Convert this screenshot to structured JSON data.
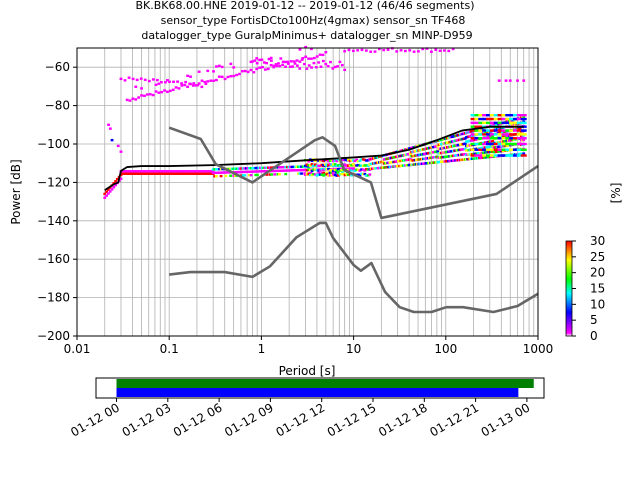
{
  "chart_data": [
    {
      "type": "ppsd",
      "title_lines": [
        "BK.BK68.00.HNE   2019-01-12 -- 2019-01-12  (46/46 segments)",
        "sensor_type FortisDCto100Hz(4gmax) sensor_sn TF468",
        "datalogger_type GuralpMinimus+ datalogger_sn MINP-D959"
      ],
      "xlabel": "Period [s]",
      "ylabel": "Power [dB]",
      "x_scale": "log",
      "xlim": [
        0.01,
        1000
      ],
      "ylim": [
        -200,
        -50
      ],
      "x_ticks": [
        0.01,
        0.1,
        1,
        10,
        100,
        1000
      ],
      "x_tick_labels": [
        "0.01",
        "0.1",
        "1",
        "10",
        "100",
        "1000"
      ],
      "y_ticks": [
        -200,
        -180,
        -160,
        -140,
        -120,
        -100,
        -80,
        -60
      ],
      "y_tick_labels": [
        "−200",
        "−180",
        "−160",
        "−140",
        "−120",
        "−100",
        "−80",
        "−60"
      ],
      "grid": true,
      "colorbar": {
        "label": "[%]",
        "range": [
          0,
          30
        ],
        "ticks": [
          0,
          5,
          10,
          15,
          20,
          25,
          30
        ],
        "tick_labels": [
          "0",
          "5",
          "10",
          "15",
          "20",
          "25",
          "30"
        ],
        "colormap": [
          "#ffffff",
          "#ff00ff",
          "#0000ff",
          "#00ffff",
          "#00ff00",
          "#ffff00",
          "#ff0000"
        ]
      },
      "series": [
        {
          "role": "mean",
          "color": "#000000",
          "x": [
            0.02,
            0.025,
            0.028,
            0.03,
            0.035,
            0.05,
            0.1,
            0.3,
            1,
            3,
            10,
            20,
            40,
            80,
            150,
            300,
            700
          ],
          "y": [
            -124,
            -121,
            -120,
            -114,
            -112,
            -111.5,
            -111.5,
            -111,
            -110,
            -108.5,
            -107,
            -106,
            -103,
            -98,
            -93,
            -91,
            -91
          ]
        },
        {
          "role": "noise_model_high",
          "color": "#666666",
          "x": [
            0.1,
            0.22,
            0.32,
            0.8,
            3.8,
            4.6,
            6.3,
            7.9,
            15.4,
            20,
            354.8,
            1000
          ],
          "y": [
            -91.5,
            -97.4,
            -110.5,
            -120,
            -98,
            -96.5,
            -101,
            -113.5,
            -120,
            -138.5,
            -126,
            -111.5
          ]
        },
        {
          "role": "noise_model_low",
          "color": "#666666",
          "x": [
            0.1,
            0.17,
            0.4,
            0.8,
            1.24,
            2.4,
            4.3,
            5,
            6,
            10,
            12,
            15.6,
            21.9,
            31.6,
            45,
            70,
            101,
            154,
            328,
            600,
            1000
          ],
          "y": [
            -168,
            -166.7,
            -166.7,
            -169.2,
            -163.7,
            -148.6,
            -141.1,
            -141.1,
            -149,
            -163,
            -166,
            -162,
            -177,
            -185,
            -187.5,
            -187.5,
            -185,
            -185,
            -187.5,
            -184.4,
            -178
          ]
        }
      ],
      "density_bands": [
        {
          "x": [
            0.028,
            0.2
          ],
          "y": -62,
          "color": "#ff00ff",
          "note": "upper sparse band"
        },
        {
          "x": [
            0.03,
            0.2
          ],
          "y": -115,
          "color": "#ff0000"
        },
        {
          "x": [
            0.3,
            12
          ],
          "y": -112,
          "color": "#ff00ff"
        },
        {
          "x": [
            40,
            700
          ],
          "y": -92,
          "color": "#0000ff"
        }
      ]
    },
    {
      "type": "timeline",
      "x_tick_labels": [
        "01-12 00",
        "01-12 03",
        "01-12 06",
        "01-12 09",
        "01-12 12",
        "01-12 15",
        "01-12 18",
        "01-12 21",
        "01-13 00"
      ],
      "x_tick_hours": [
        0,
        3,
        6,
        9,
        12,
        15,
        18,
        21,
        24
      ],
      "xlim_hours": [
        -1.2,
        25
      ],
      "bars": [
        {
          "start_hour": 0,
          "end_hour": 24.4,
          "color": "#008000"
        },
        {
          "start_hour": 0,
          "end_hour": 23.5,
          "color": "#0000ff"
        }
      ]
    }
  ]
}
